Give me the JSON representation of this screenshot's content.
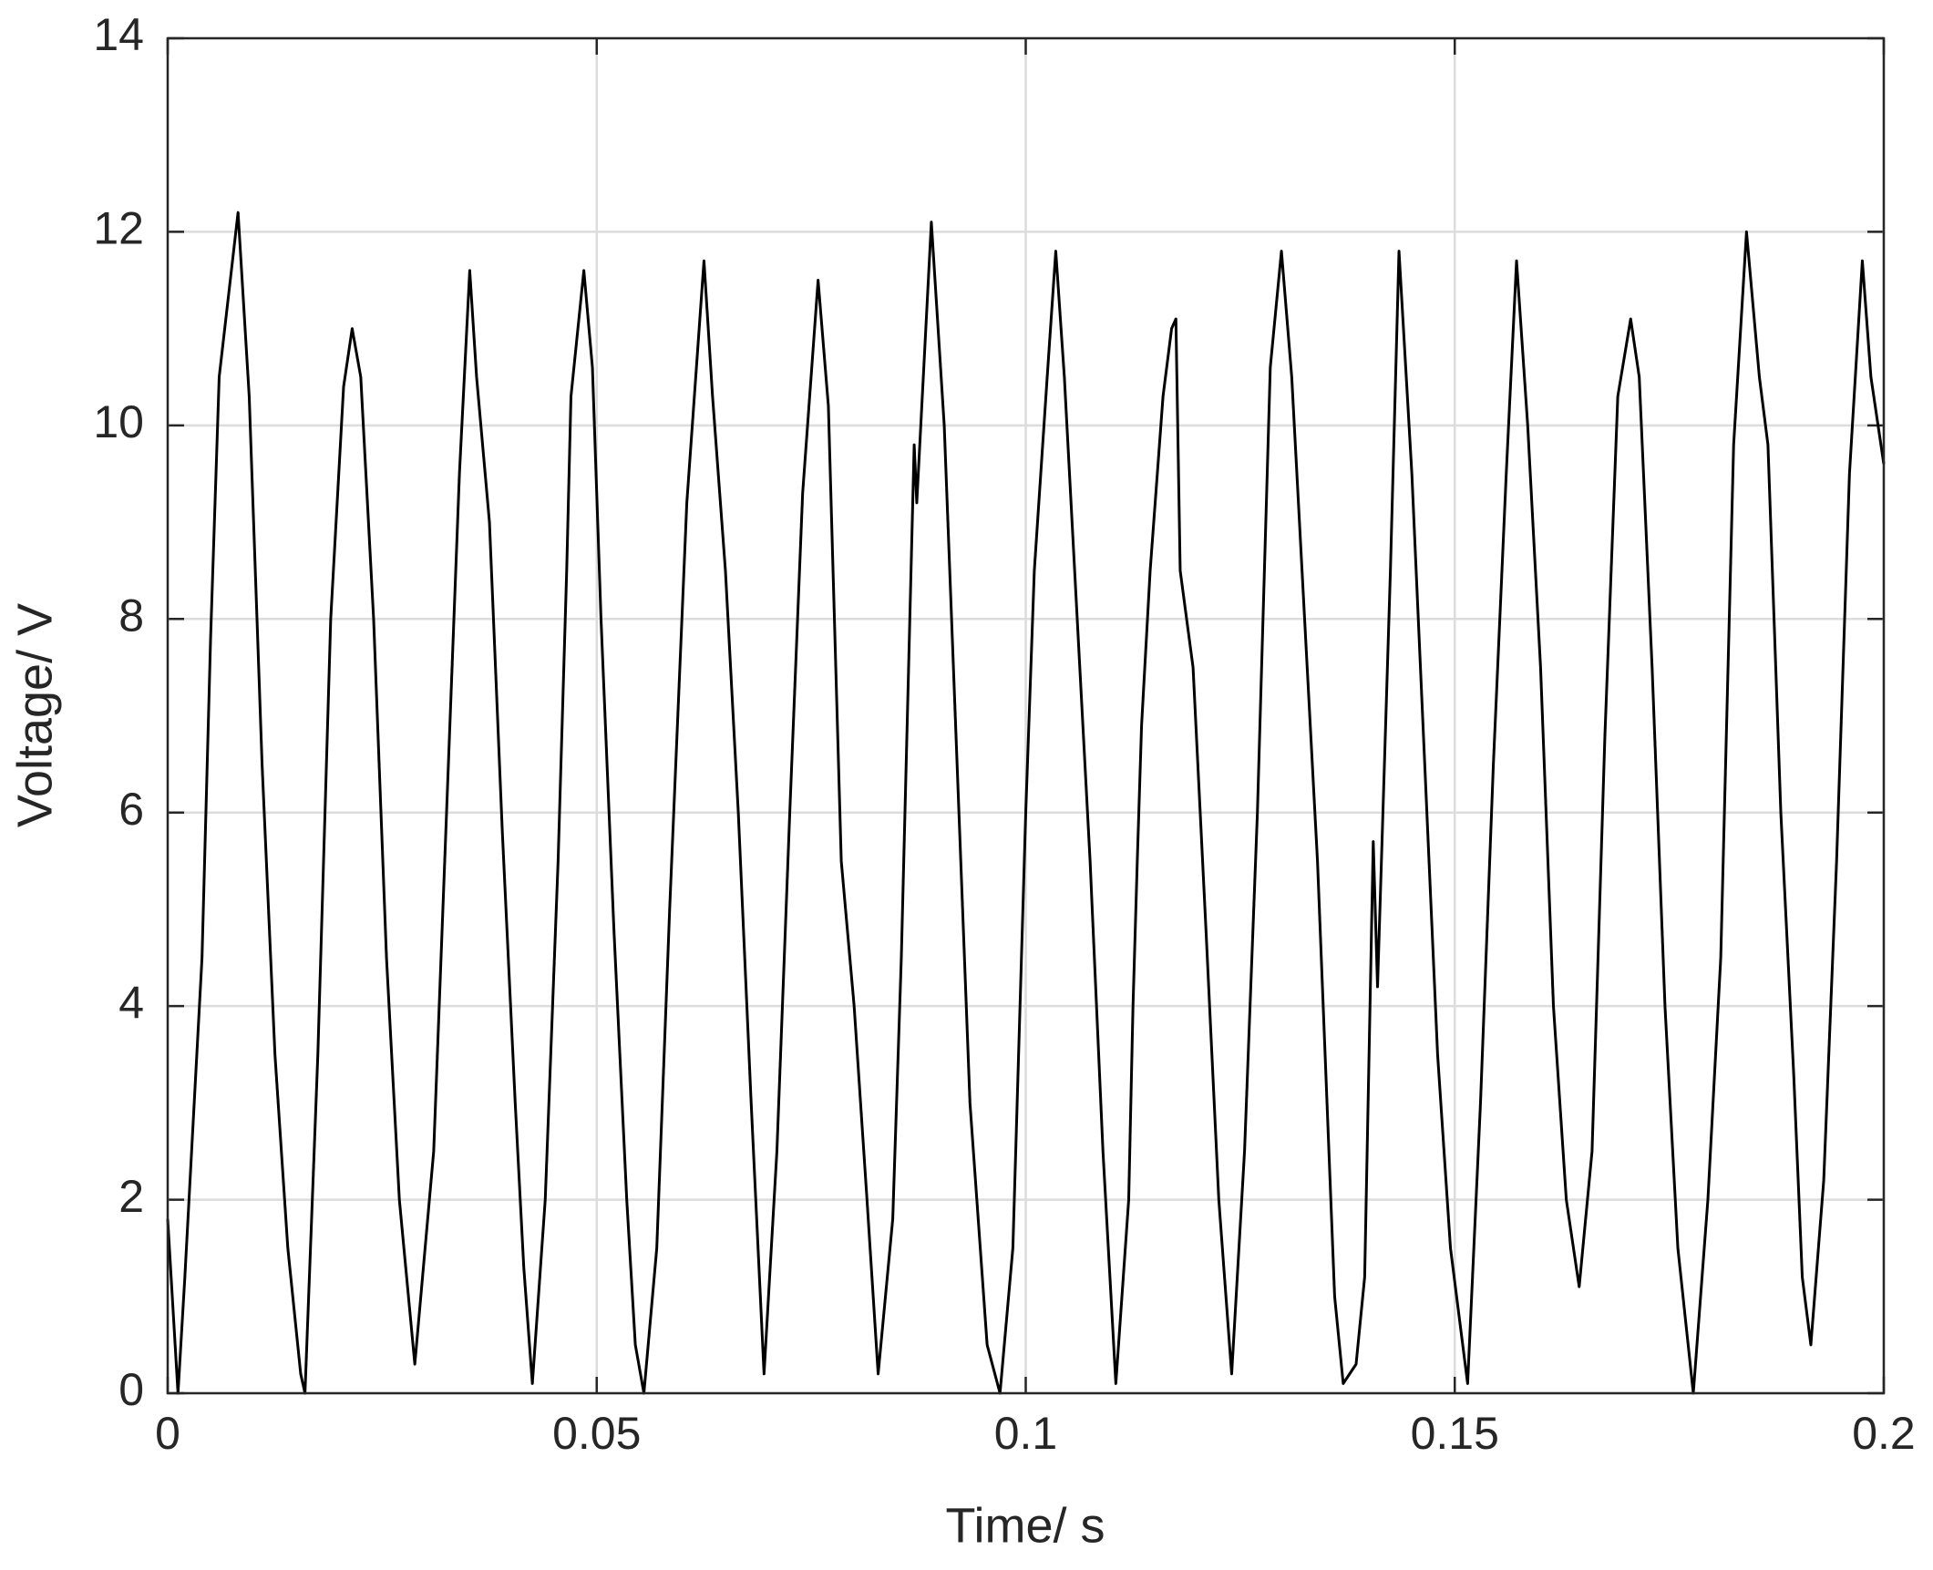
{
  "chart_data": {
    "type": "line",
    "xlabel": "Time/ s",
    "ylabel": "Voltage/ V",
    "xlim": [
      0,
      0.2
    ],
    "xticks": [
      0,
      0.05,
      0.1,
      0.15,
      0.2
    ],
    "ylim": [
      0,
      14
    ],
    "yticks": [
      0,
      2,
      4,
      6,
      8,
      10,
      12,
      14
    ],
    "grid": true,
    "color": "#000000",
    "x": [
      0,
      0.0012,
      0.002,
      0.004,
      0.005,
      0.006,
      0.0082,
      0.0095,
      0.011,
      0.0125,
      0.014,
      0.0155,
      0.016,
      0.0175,
      0.019,
      0.0205,
      0.0215,
      0.0225,
      0.024,
      0.0255,
      0.027,
      0.0288,
      0.031,
      0.0325,
      0.034,
      0.0352,
      0.036,
      0.0375,
      0.039,
      0.0405,
      0.0415,
      0.0425,
      0.044,
      0.0455,
      0.0465,
      0.047,
      0.0485,
      0.0495,
      0.0505,
      0.052,
      0.0535,
      0.0545,
      0.0555,
      0.057,
      0.0585,
      0.0605,
      0.0625,
      0.0635,
      0.065,
      0.0665,
      0.068,
      0.0695,
      0.071,
      0.0725,
      0.074,
      0.0758,
      0.077,
      0.0785,
      0.08,
      0.0815,
      0.0828,
      0.0845,
      0.0855,
      0.087,
      0.0873,
      0.089,
      0.0905,
      0.092,
      0.0935,
      0.0955,
      0.097,
      0.0985,
      0.1,
      0.101,
      0.1025,
      0.1035,
      0.1045,
      0.106,
      0.1075,
      0.109,
      0.1105,
      0.112,
      0.1125,
      0.113,
      0.1135,
      0.1145,
      0.116,
      0.117,
      0.1175,
      0.118,
      0.1195,
      0.121,
      0.1225,
      0.124,
      0.1255,
      0.127,
      0.1285,
      0.1298,
      0.131,
      0.1325,
      0.134,
      0.136,
      0.137,
      0.1385,
      0.1395,
      0.1405,
      0.141,
      0.1425,
      0.1435,
      0.145,
      0.1465,
      0.148,
      0.1495,
      0.1515,
      0.153,
      0.1545,
      0.156,
      0.1572,
      0.1585,
      0.16,
      0.1615,
      0.163,
      0.1645,
      0.166,
      0.1675,
      0.169,
      0.1705,
      0.1715,
      0.173,
      0.1745,
      0.176,
      0.1778,
      0.1795,
      0.181,
      0.1825,
      0.184,
      0.1855,
      0.1865,
      0.188,
      0.1895,
      0.1905,
      0.1915,
      0.193,
      0.1945,
      0.196,
      0.1975,
      0.1985,
      0.2
    ],
    "values": [
      1.8,
      0,
      1.2,
      4.5,
      7.8,
      10.5,
      12.2,
      10.3,
      6.5,
      3.5,
      1.5,
      0.2,
      0,
      3.5,
      8,
      10.4,
      11,
      10.5,
      8,
      4.5,
      2,
      0.3,
      2.5,
      6,
      9.5,
      11.6,
      10.5,
      9,
      5.8,
      3,
      1.3,
      0.1,
      2,
      5.5,
      8.5,
      10.3,
      11.6,
      10.6,
      8,
      4.8,
      2,
      0.5,
      0,
      1.5,
      5,
      9.2,
      11.7,
      10.3,
      8.5,
      6,
      3,
      0.2,
      2.5,
      6,
      9.3,
      11.5,
      10.2,
      5.5,
      4,
      2,
      0.2,
      1.8,
      4.5,
      9.8,
      9.2,
      12.1,
      10,
      6.5,
      3,
      0.5,
      0,
      1.5,
      6,
      8.5,
      10.5,
      11.8,
      10.5,
      8,
      5.5,
      2.5,
      0.1,
      2,
      4,
      5.5,
      6.9,
      8.5,
      10.3,
      11,
      11.1,
      8.5,
      7.5,
      4.8,
      2,
      0.2,
      2.5,
      6,
      10.6,
      11.8,
      10.5,
      8,
      5.5,
      1,
      0.1,
      0.3,
      1.2,
      5.7,
      4.2,
      8.5,
      11.8,
      9.5,
      6.5,
      3.5,
      1.5,
      0.1,
      3,
      6.5,
      9.5,
      11.7,
      10,
      7.5,
      4,
      2,
      1.1,
      2.5,
      6.8,
      10.3,
      11.1,
      10.5,
      7.5,
      4,
      1.5,
      0,
      2,
      4.5,
      9.8,
      12,
      10.5,
      9.8,
      6,
      3.3,
      1.2,
      0.5,
      2.2,
      5.5,
      9.5,
      11.7,
      10.5,
      9.6
    ]
  }
}
